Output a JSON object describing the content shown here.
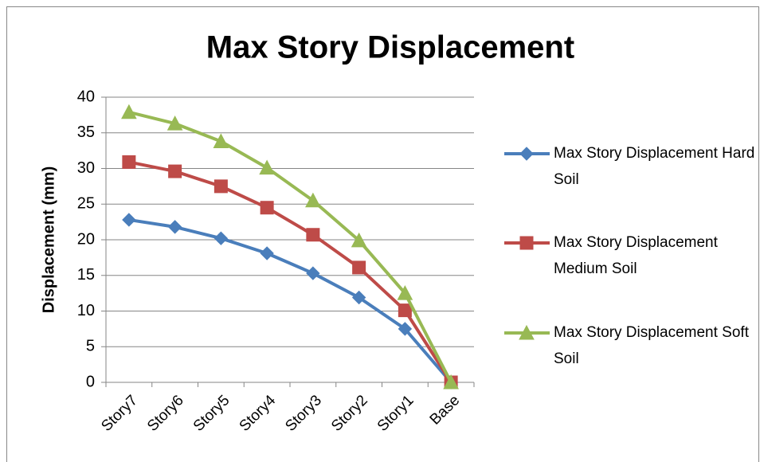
{
  "chart_data": {
    "type": "line",
    "title": "Max Story Displacement",
    "y_label": "Displacement (mm)",
    "categories": [
      "Story7",
      "Story6",
      "Story5",
      "Story4",
      "Story3",
      "Story2",
      "Story1",
      "Base"
    ],
    "series": [
      {
        "name": "Max Story Displacement Hard Soil",
        "color": "#4a7ebb",
        "marker": "diamond",
        "values": [
          22.8,
          21.8,
          20.2,
          18.1,
          15.3,
          11.9,
          7.5,
          0
        ]
      },
      {
        "name": "Max Story Displacement Medium Soil",
        "color": "#be4b48",
        "marker": "square",
        "values": [
          30.9,
          29.6,
          27.5,
          24.5,
          20.7,
          16.1,
          10.1,
          0
        ]
      },
      {
        "name": "Max Story Displacement Soft Soil",
        "color": "#98b954",
        "marker": "triangle",
        "values": [
          37.9,
          36.3,
          33.8,
          30.1,
          25.5,
          19.9,
          12.5,
          0
        ]
      }
    ],
    "ylim": [
      0,
      40
    ],
    "yticks": [
      0,
      5,
      10,
      15,
      20,
      25,
      30,
      35,
      40
    ],
    "grid": true,
    "legend": "right"
  }
}
